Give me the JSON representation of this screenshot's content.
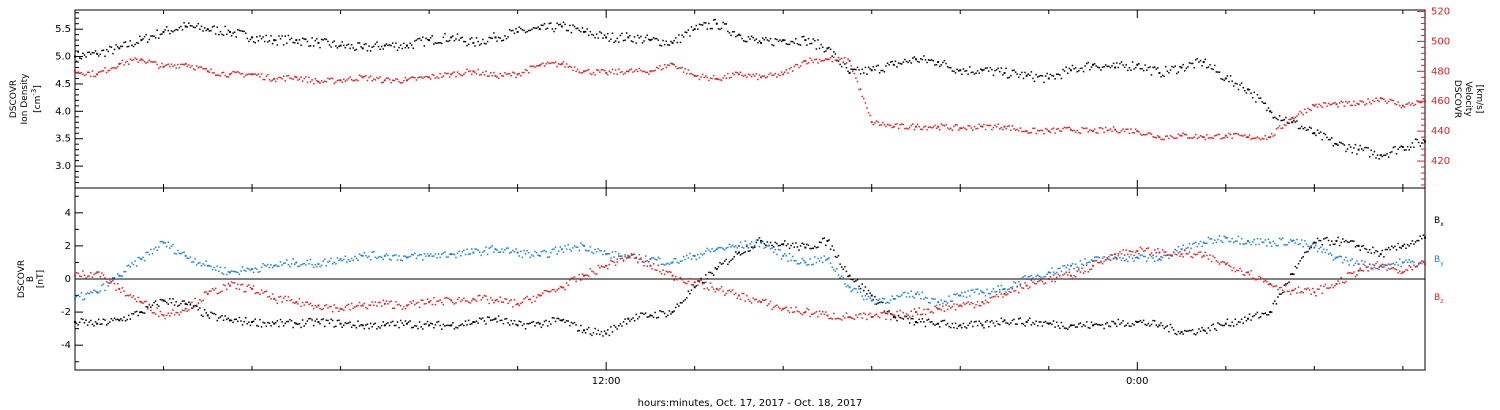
{
  "chart_data": [
    {
      "type": "scatter",
      "panel": "density-velocity",
      "x_axis": {
        "label": "hours:minutes, Oct. 17, 2017 - Oct. 18, 2017",
        "unit": "hours since 2017-10-17 00:00 (approx.)",
        "xlim": [
          0,
          30.5
        ],
        "major_ticks": [
          {
            "x": 12,
            "label": "12:00"
          },
          {
            "x": 24,
            "label": "0:00"
          }
        ]
      },
      "y_left": {
        "label_line1": "DSCOVR",
        "label_line2": "Ion Density",
        "unit_base": "[cm",
        "unit_sup": "-3",
        "unit_end": "]",
        "ylim": [
          2.6,
          5.85
        ],
        "ticks": [
          "3.0",
          "3.5",
          "4.0",
          "4.5",
          "5.0",
          "5.5"
        ],
        "color": "#000000"
      },
      "y_right": {
        "label_line1": "DSCOVR",
        "label_line2": "Velocity",
        "unit": "[km/s]",
        "ylim": [
          402,
          521
        ],
        "ticks": [
          "420",
          "440",
          "460",
          "480",
          "500",
          "520"
        ],
        "color": "#dd2222"
      },
      "series": [
        {
          "color": "#000000",
          "axis": "left",
          "x": [
            0,
            0.5,
            1,
            1.5,
            2,
            2.5,
            3,
            3.5,
            4,
            4.5,
            5,
            5.5,
            6,
            6.5,
            7,
            7.5,
            8,
            8.5,
            9,
            9.5,
            10,
            10.5,
            11,
            11.5,
            12,
            12.5,
            13,
            13.5,
            14,
            14.5,
            15,
            15.5,
            16,
            16.5,
            17,
            17.5,
            18,
            18.5,
            19,
            19.5,
            20,
            20.5,
            21,
            21.5,
            22,
            22.5,
            23,
            23.5,
            24,
            24.5,
            25,
            25.5,
            26,
            26.5,
            27,
            27.5,
            28,
            28.5,
            29,
            29.5,
            30,
            30.5
          ],
          "values": [
            5.0,
            5.05,
            5.15,
            5.3,
            5.45,
            5.55,
            5.5,
            5.45,
            5.35,
            5.3,
            5.3,
            5.25,
            5.2,
            5.15,
            5.2,
            5.2,
            5.3,
            5.35,
            5.25,
            5.35,
            5.45,
            5.5,
            5.55,
            5.45,
            5.35,
            5.35,
            5.3,
            5.25,
            5.5,
            5.6,
            5.4,
            5.25,
            5.3,
            5.3,
            5.15,
            4.7,
            4.75,
            4.85,
            4.95,
            4.9,
            4.75,
            4.75,
            4.7,
            4.65,
            4.6,
            4.75,
            4.85,
            4.8,
            4.85,
            4.7,
            4.8,
            4.9,
            4.6,
            4.4,
            4.0,
            3.8,
            3.6,
            3.4,
            3.3,
            3.2,
            3.35,
            3.45
          ]
        }
      ],
      "series_right": {
        "color": "#dd2222",
        "axis": "right",
        "x": [
          0,
          0.5,
          1,
          1.5,
          2,
          2.5,
          3,
          3.5,
          4,
          4.5,
          5,
          5.5,
          6,
          6.5,
          7,
          7.5,
          8,
          8.5,
          9,
          9.5,
          10,
          10.5,
          11,
          11.5,
          12,
          12.5,
          13,
          13.5,
          14,
          14.5,
          15,
          15.5,
          16,
          16.5,
          17,
          17.5,
          18,
          18.5,
          19,
          19.5,
          20,
          20.5,
          21,
          21.5,
          22,
          22.5,
          23,
          23.5,
          24,
          24.5,
          25,
          25.5,
          26,
          26.5,
          27,
          27.5,
          28,
          28.5,
          29,
          29.5,
          30,
          30.5
        ],
        "values": [
          480,
          478,
          485,
          488,
          483,
          485,
          480,
          478,
          478,
          475,
          476,
          473,
          474,
          476,
          474,
          474,
          476,
          478,
          480,
          477,
          478,
          484,
          485,
          480,
          479,
          480,
          480,
          485,
          477,
          475,
          478,
          476,
          478,
          487,
          488,
          487,
          446,
          443,
          443,
          443,
          442,
          443,
          443,
          440,
          440,
          441,
          440,
          441,
          440,
          436,
          437,
          436,
          437,
          436,
          436,
          449,
          457,
          458,
          458,
          462,
          457,
          460
        ]
      }
    },
    {
      "type": "scatter",
      "panel": "magnetic-field",
      "x_axis": {
        "label": "hours:minutes, Oct. 17, 2017 - Oct. 18, 2017",
        "xlim": [
          0,
          30.5
        ],
        "major_ticks": [
          {
            "x": 12,
            "label": "12:00"
          },
          {
            "x": 24,
            "label": "0:00"
          }
        ]
      },
      "y_left": {
        "label_line1": "DSCOVR",
        "label_line2": "B",
        "unit_base": "[nT]",
        "ylim": [
          -5.5,
          5.5
        ],
        "ticks": [
          "-4",
          "-2",
          "0",
          "2",
          "4"
        ],
        "color": "#000000"
      },
      "series": [
        {
          "name": "Bx",
          "legend_base": "B",
          "legend_sub": "x",
          "color": "#000000",
          "x": [
            0,
            0.5,
            1,
            1.5,
            2,
            2.5,
            3,
            3.5,
            4,
            4.5,
            5,
            5.5,
            6,
            6.5,
            7,
            7.5,
            8,
            8.5,
            9,
            9.5,
            10,
            10.5,
            11,
            11.5,
            12,
            12.5,
            13,
            13.5,
            14,
            14.5,
            15,
            15.5,
            16,
            16.5,
            17,
            17.5,
            18,
            18.5,
            19,
            19.5,
            20,
            20.5,
            21,
            21.5,
            22,
            22.5,
            23,
            23.5,
            24,
            24.5,
            25,
            25.5,
            26,
            26.5,
            27,
            27.5,
            28,
            28.5,
            29,
            29.5,
            30,
            30.5
          ],
          "values": [
            -2.6,
            -2.7,
            -2.5,
            -2.0,
            -1.3,
            -1.5,
            -2.2,
            -2.5,
            -2.6,
            -2.7,
            -2.7,
            -2.6,
            -2.7,
            -2.8,
            -2.8,
            -2.7,
            -2.8,
            -2.8,
            -2.6,
            -2.4,
            -2.8,
            -2.7,
            -2.5,
            -3.1,
            -3.3,
            -2.4,
            -2.2,
            -2.0,
            -0.5,
            0.6,
            1.6,
            2.3,
            2.1,
            1.9,
            2.3,
            0.2,
            -1.0,
            -2.3,
            -2.6,
            -2.7,
            -2.8,
            -2.8,
            -2.5,
            -2.6,
            -2.7,
            -2.8,
            -2.8,
            -2.7,
            -2.6,
            -2.8,
            -3.2,
            -3.1,
            -2.7,
            -2.4,
            -2.0,
            0.3,
            2.2,
            2.3,
            2.0,
            1.5,
            2.0,
            2.5
          ]
        },
        {
          "name": "By",
          "legend_base": "B",
          "legend_sub": "y",
          "color": "#1f7fd6",
          "x": [
            0,
            0.5,
            1,
            1.5,
            2,
            2.5,
            3,
            3.5,
            4,
            4.5,
            5,
            5.5,
            6,
            6.5,
            7,
            7.5,
            8,
            8.5,
            9,
            9.5,
            10,
            10.5,
            11,
            11.5,
            12,
            12.5,
            13,
            13.5,
            14,
            14.5,
            15,
            15.5,
            16,
            16.5,
            17,
            17.5,
            18,
            18.5,
            19,
            19.5,
            20,
            20.5,
            21,
            21.5,
            22,
            22.5,
            23,
            23.5,
            24,
            24.5,
            25,
            25.5,
            26,
            26.5,
            27,
            27.5,
            28,
            28.5,
            29,
            29.5,
            30,
            30.5
          ],
          "values": [
            -1.2,
            -0.8,
            0.2,
            1.2,
            2.2,
            1.4,
            0.8,
            0.4,
            0.6,
            0.8,
            1.0,
            0.9,
            1.2,
            1.4,
            1.4,
            1.3,
            1.4,
            1.5,
            1.6,
            1.8,
            1.6,
            1.4,
            1.8,
            2.0,
            1.5,
            1.3,
            1.2,
            1.0,
            1.4,
            1.8,
            2.0,
            2.2,
            1.4,
            1.0,
            1.2,
            -0.5,
            -1.3,
            -1.2,
            -0.9,
            -1.4,
            -1.0,
            -0.8,
            -0.6,
            0.0,
            0.4,
            0.8,
            1.1,
            1.3,
            1.3,
            1.2,
            1.8,
            2.2,
            2.5,
            2.3,
            2.2,
            2.3,
            1.9,
            1.3,
            0.9,
            0.8,
            1.0,
            0.9
          ]
        },
        {
          "name": "Bz",
          "legend_base": "B",
          "legend_sub": "z",
          "color": "#dd2222",
          "x": [
            0,
            0.5,
            1,
            1.5,
            2,
            2.5,
            3,
            3.5,
            4,
            4.5,
            5,
            5.5,
            6,
            6.5,
            7,
            7.5,
            8,
            8.5,
            9,
            9.5,
            10,
            10.5,
            11,
            11.5,
            12,
            12.5,
            13,
            13.5,
            14,
            14.5,
            15,
            15.5,
            16,
            16.5,
            17,
            17.5,
            18,
            18.5,
            19,
            19.5,
            20,
            20.5,
            21,
            21.5,
            22,
            22.5,
            23,
            23.5,
            24,
            24.5,
            25,
            25.5,
            26,
            26.5,
            27,
            27.5,
            28,
            28.5,
            29,
            29.5,
            30,
            30.5
          ],
          "values": [
            0.2,
            0.4,
            -0.6,
            -1.4,
            -2.2,
            -1.8,
            -0.9,
            -0.4,
            -0.6,
            -1.2,
            -1.4,
            -1.6,
            -1.8,
            -1.6,
            -1.5,
            -1.6,
            -1.4,
            -1.3,
            -1.2,
            -1.3,
            -1.5,
            -1.0,
            -0.5,
            0.2,
            0.8,
            1.4,
            0.8,
            0.2,
            -0.2,
            -0.6,
            -1.0,
            -1.4,
            -1.8,
            -2.0,
            -2.2,
            -2.3,
            -2.3,
            -2.2,
            -2.0,
            -1.8,
            -1.6,
            -1.4,
            -0.9,
            -0.4,
            0.0,
            0.2,
            0.8,
            1.5,
            1.7,
            1.6,
            1.5,
            1.4,
            0.9,
            0.4,
            -0.3,
            -0.7,
            -0.8,
            -0.3,
            0.5,
            0.8,
            0.4,
            0.9
          ]
        }
      ]
    }
  ]
}
